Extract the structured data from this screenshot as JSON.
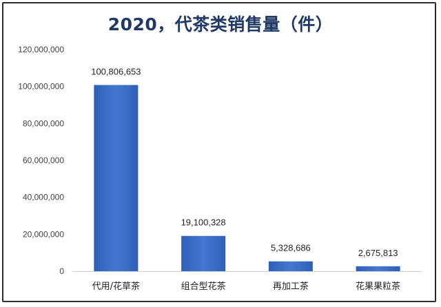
{
  "chart_data": {
    "type": "bar",
    "title": "2020，代茶类销售量（件）",
    "categories": [
      "代用/花草茶",
      "组合型花茶",
      "再加工茶",
      "花果果粒茶"
    ],
    "values": [
      100806653,
      19100328,
      5328686,
      2675813
    ],
    "data_labels": [
      "100,806,653",
      "19,100,328",
      "5,328,686",
      "2,675,813"
    ],
    "xlabel": "",
    "ylabel": "",
    "ylim": [
      0,
      120000000
    ],
    "yticks": [
      0,
      20000000,
      40000000,
      60000000,
      80000000,
      100000000,
      120000000
    ],
    "ytick_labels": [
      "0",
      "20,000,000",
      "40,000,000",
      "60,000,000",
      "80,000,000",
      "100,000,000",
      "120,000,000"
    ],
    "grid": false,
    "legend": "none",
    "bar_color": "#3a6cc7"
  }
}
